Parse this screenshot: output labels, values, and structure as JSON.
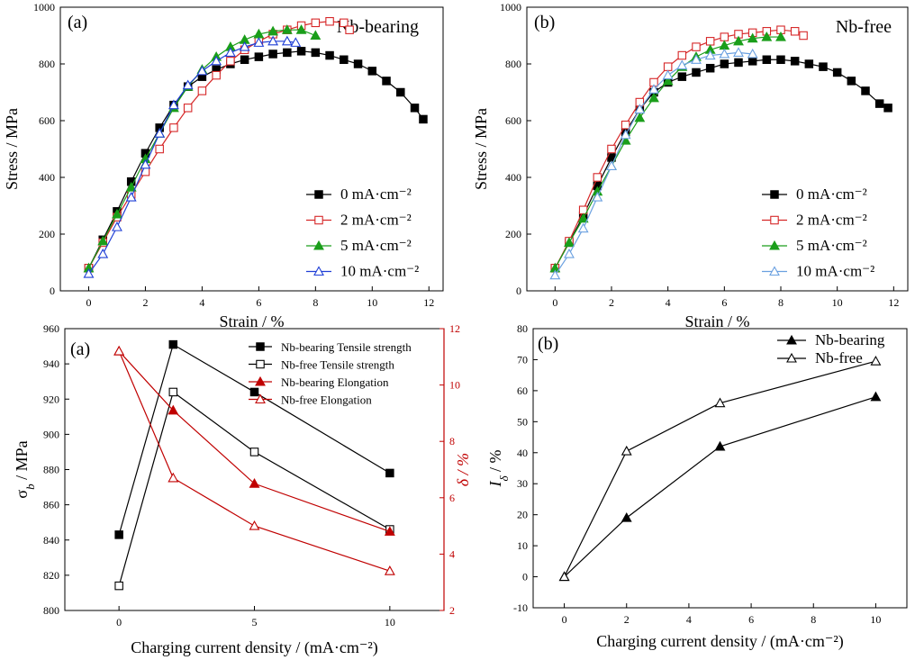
{
  "chart_data": [
    {
      "type": "line",
      "panel_label": "(a)",
      "title": "Nb-bearing",
      "xlabel": "Strain / %",
      "ylabel": "Stress / MPa",
      "xlim": [
        -1,
        12.5
      ],
      "ylim": [
        0,
        1000
      ],
      "xticks": [
        0,
        2,
        4,
        6,
        8,
        10,
        12
      ],
      "yticks": [
        0,
        200,
        400,
        600,
        800,
        1000
      ],
      "legend_position": "bottom-right",
      "series": [
        {
          "name": "0 mA·cm⁻²",
          "color": "#000000",
          "marker": "square-filled",
          "x": [
            0,
            0.5,
            1.0,
            1.5,
            2.0,
            2.5,
            3.0,
            3.5,
            4.0,
            4.5,
            5.0,
            5.5,
            6.0,
            6.5,
            7.0,
            7.5,
            8.0,
            8.5,
            9.0,
            9.5,
            10.0,
            10.5,
            11.0,
            11.5,
            11.8
          ],
          "y": [
            80,
            180,
            280,
            385,
            485,
            575,
            655,
            720,
            755,
            780,
            800,
            815,
            825,
            835,
            840,
            845,
            840,
            830,
            815,
            800,
            775,
            740,
            700,
            645,
            605
          ]
        },
        {
          "name": "2 mA·cm⁻²",
          "color": "#d62728",
          "marker": "square-open",
          "x": [
            0,
            0.5,
            1.0,
            1.5,
            2.0,
            2.5,
            3.0,
            3.5,
            4.0,
            4.5,
            5.0,
            5.5,
            6.0,
            6.5,
            7.0,
            7.5,
            8.0,
            8.5,
            9.0,
            9.2
          ],
          "y": [
            80,
            170,
            260,
            340,
            420,
            500,
            575,
            645,
            705,
            760,
            810,
            850,
            880,
            905,
            920,
            935,
            945,
            950,
            945,
            920
          ]
        },
        {
          "name": "5 mA·cm⁻²",
          "color": "#1a9e1a",
          "marker": "triangle-filled",
          "x": [
            0,
            0.5,
            1.0,
            1.5,
            2.0,
            2.5,
            3.0,
            3.5,
            4.0,
            4.5,
            5.0,
            5.5,
            6.0,
            6.5,
            7.0,
            7.5,
            8.0
          ],
          "y": [
            80,
            175,
            270,
            365,
            465,
            555,
            645,
            720,
            780,
            825,
            860,
            885,
            905,
            915,
            920,
            920,
            900
          ]
        },
        {
          "name": "10 mA·cm⁻²",
          "color": "#1f3fd6",
          "marker": "triangle-open",
          "x": [
            0,
            0.5,
            1.0,
            1.5,
            2.0,
            2.5,
            3.0,
            3.5,
            4.0,
            4.5,
            5.0,
            5.5,
            6.0,
            6.5,
            7.0,
            7.3
          ],
          "y": [
            60,
            130,
            225,
            330,
            445,
            555,
            655,
            725,
            775,
            810,
            840,
            860,
            875,
            880,
            880,
            875
          ]
        }
      ]
    },
    {
      "type": "line",
      "panel_label": "(b)",
      "title": "Nb-free",
      "xlabel": "Strain / %",
      "ylabel": "Stress / MPa",
      "xlim": [
        -1,
        12.5
      ],
      "ylim": [
        0,
        1000
      ],
      "xticks": [
        0,
        2,
        4,
        6,
        8,
        10,
        12
      ],
      "yticks": [
        0,
        200,
        400,
        600,
        800,
        1000
      ],
      "legend_position": "bottom-right",
      "series": [
        {
          "name": "0 mA·cm⁻²",
          "color": "#000000",
          "marker": "square-filled",
          "x": [
            0,
            0.5,
            1.0,
            1.5,
            2.0,
            2.5,
            3.0,
            3.5,
            4.0,
            4.5,
            5.0,
            5.5,
            6.0,
            6.5,
            7.0,
            7.5,
            8.0,
            8.5,
            9.0,
            9.5,
            10.0,
            10.5,
            11.0,
            11.5,
            11.8
          ],
          "y": [
            80,
            170,
            265,
            370,
            470,
            560,
            640,
            700,
            735,
            755,
            770,
            785,
            800,
            805,
            810,
            815,
            815,
            810,
            800,
            790,
            770,
            740,
            705,
            660,
            645
          ]
        },
        {
          "name": "2 mA·cm⁻²",
          "color": "#d62728",
          "marker": "square-open",
          "x": [
            0,
            0.5,
            1.0,
            1.5,
            2.0,
            2.5,
            3.0,
            3.5,
            4.0,
            4.5,
            5.0,
            5.5,
            6.0,
            6.5,
            7.0,
            7.5,
            8.0,
            8.5,
            8.8
          ],
          "y": [
            80,
            175,
            285,
            400,
            500,
            585,
            665,
            735,
            790,
            830,
            860,
            880,
            895,
            905,
            910,
            915,
            920,
            915,
            900
          ]
        },
        {
          "name": "5 mA·cm⁻²",
          "color": "#1a9e1a",
          "marker": "triangle-filled",
          "x": [
            0,
            0.5,
            1.0,
            1.5,
            2.0,
            2.5,
            3.0,
            3.5,
            4.0,
            4.5,
            5.0,
            5.5,
            6.0,
            6.5,
            7.0,
            7.5,
            8.0
          ],
          "y": [
            80,
            170,
            255,
            350,
            440,
            530,
            610,
            680,
            740,
            790,
            825,
            850,
            865,
            880,
            890,
            895,
            895
          ]
        },
        {
          "name": "10 mA·cm⁻²",
          "color": "#6aa0e0",
          "marker": "triangle-open",
          "x": [
            0,
            0.5,
            1.0,
            1.5,
            2.0,
            2.5,
            3.0,
            3.5,
            4.0,
            4.5,
            5.0,
            5.5,
            6.0,
            6.5,
            7.0
          ],
          "y": [
            55,
            130,
            220,
            330,
            440,
            550,
            640,
            710,
            760,
            795,
            815,
            830,
            835,
            840,
            835
          ]
        }
      ]
    },
    {
      "type": "line",
      "panel_label": "(a)",
      "title": "",
      "xlabel": "Charging current density / (mA·cm⁻²)",
      "ylabel": "σ",
      "ylabel_sub": "b",
      "ylabel_suffix": " / MPa",
      "y2label": "δ / %",
      "xlim": [
        -2,
        12
      ],
      "ylim": [
        800,
        960
      ],
      "y2lim": [
        2,
        12
      ],
      "xticks": [
        0,
        5,
        10
      ],
      "yticks": [
        800,
        820,
        840,
        860,
        880,
        900,
        920,
        940,
        960
      ],
      "y2ticks": [
        2,
        4,
        6,
        8,
        10,
        12
      ],
      "legend_position": "top-right",
      "series": [
        {
          "name": "Nb-bearing Tensile strength",
          "axis": "left",
          "color": "#000000",
          "marker": "square-filled",
          "x": [
            0,
            2,
            5,
            10
          ],
          "y": [
            843,
            951,
            924,
            878
          ]
        },
        {
          "name": "Nb-free Tensile strength",
          "axis": "left",
          "color": "#000000",
          "marker": "square-open",
          "x": [
            0,
            2,
            5,
            10
          ],
          "y": [
            814,
            924,
            890,
            846
          ]
        },
        {
          "name": "Nb-bearing Elongation",
          "axis": "right",
          "color": "#c00000",
          "marker": "triangle-filled",
          "x": [
            0,
            2,
            5,
            10
          ],
          "y": [
            11.2,
            9.1,
            6.5,
            4.8
          ]
        },
        {
          "name": "Nb-free Elongation",
          "axis": "right",
          "color": "#c00000",
          "marker": "triangle-open",
          "x": [
            0,
            2,
            5,
            10
          ],
          "y": [
            11.2,
            6.7,
            5.0,
            3.4
          ]
        }
      ]
    },
    {
      "type": "line",
      "panel_label": "(b)",
      "title": "",
      "xlabel": "Charging current density / (mA·cm⁻²)",
      "ylabel": "I",
      "ylabel_sub": "δ",
      "ylabel_suffix": " / %",
      "xlim": [
        -1,
        11
      ],
      "ylim": [
        -10,
        80
      ],
      "xticks": [
        0,
        2,
        4,
        6,
        8,
        10
      ],
      "yticks": [
        -10,
        0,
        10,
        20,
        30,
        40,
        50,
        60,
        70,
        80
      ],
      "legend_position": "top-right",
      "series": [
        {
          "name": "Nb-bearing",
          "color": "#000000",
          "marker": "triangle-filled",
          "x": [
            0,
            2,
            5,
            10
          ],
          "y": [
            0,
            19,
            42,
            58
          ]
        },
        {
          "name": "Nb-free",
          "color": "#000000",
          "marker": "triangle-open",
          "x": [
            0,
            2,
            5,
            10
          ],
          "y": [
            0,
            40.5,
            56,
            69.5
          ]
        }
      ]
    }
  ]
}
